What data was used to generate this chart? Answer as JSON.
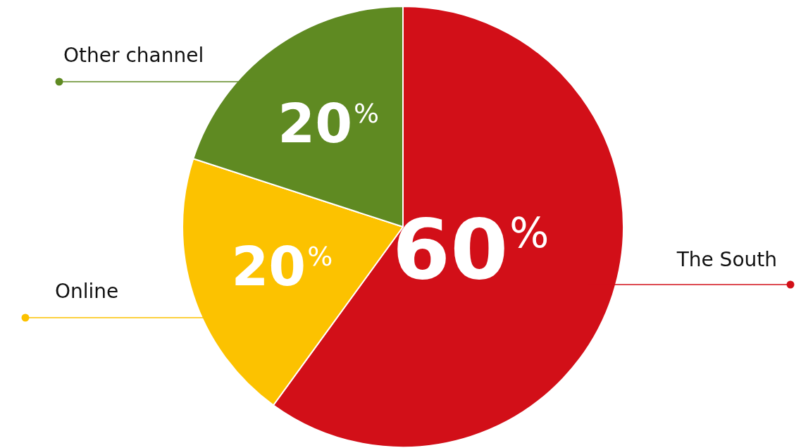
{
  "chart_data": {
    "type": "pie",
    "categories": [
      "The South",
      "Online",
      "Other channel"
    ],
    "values": [
      60,
      20,
      20
    ],
    "colors": [
      "#d20f18",
      "#fcc200",
      "#5f8a22"
    ],
    "value_labels": [
      "60%",
      "20%",
      "20%"
    ],
    "legend": false
  }
}
